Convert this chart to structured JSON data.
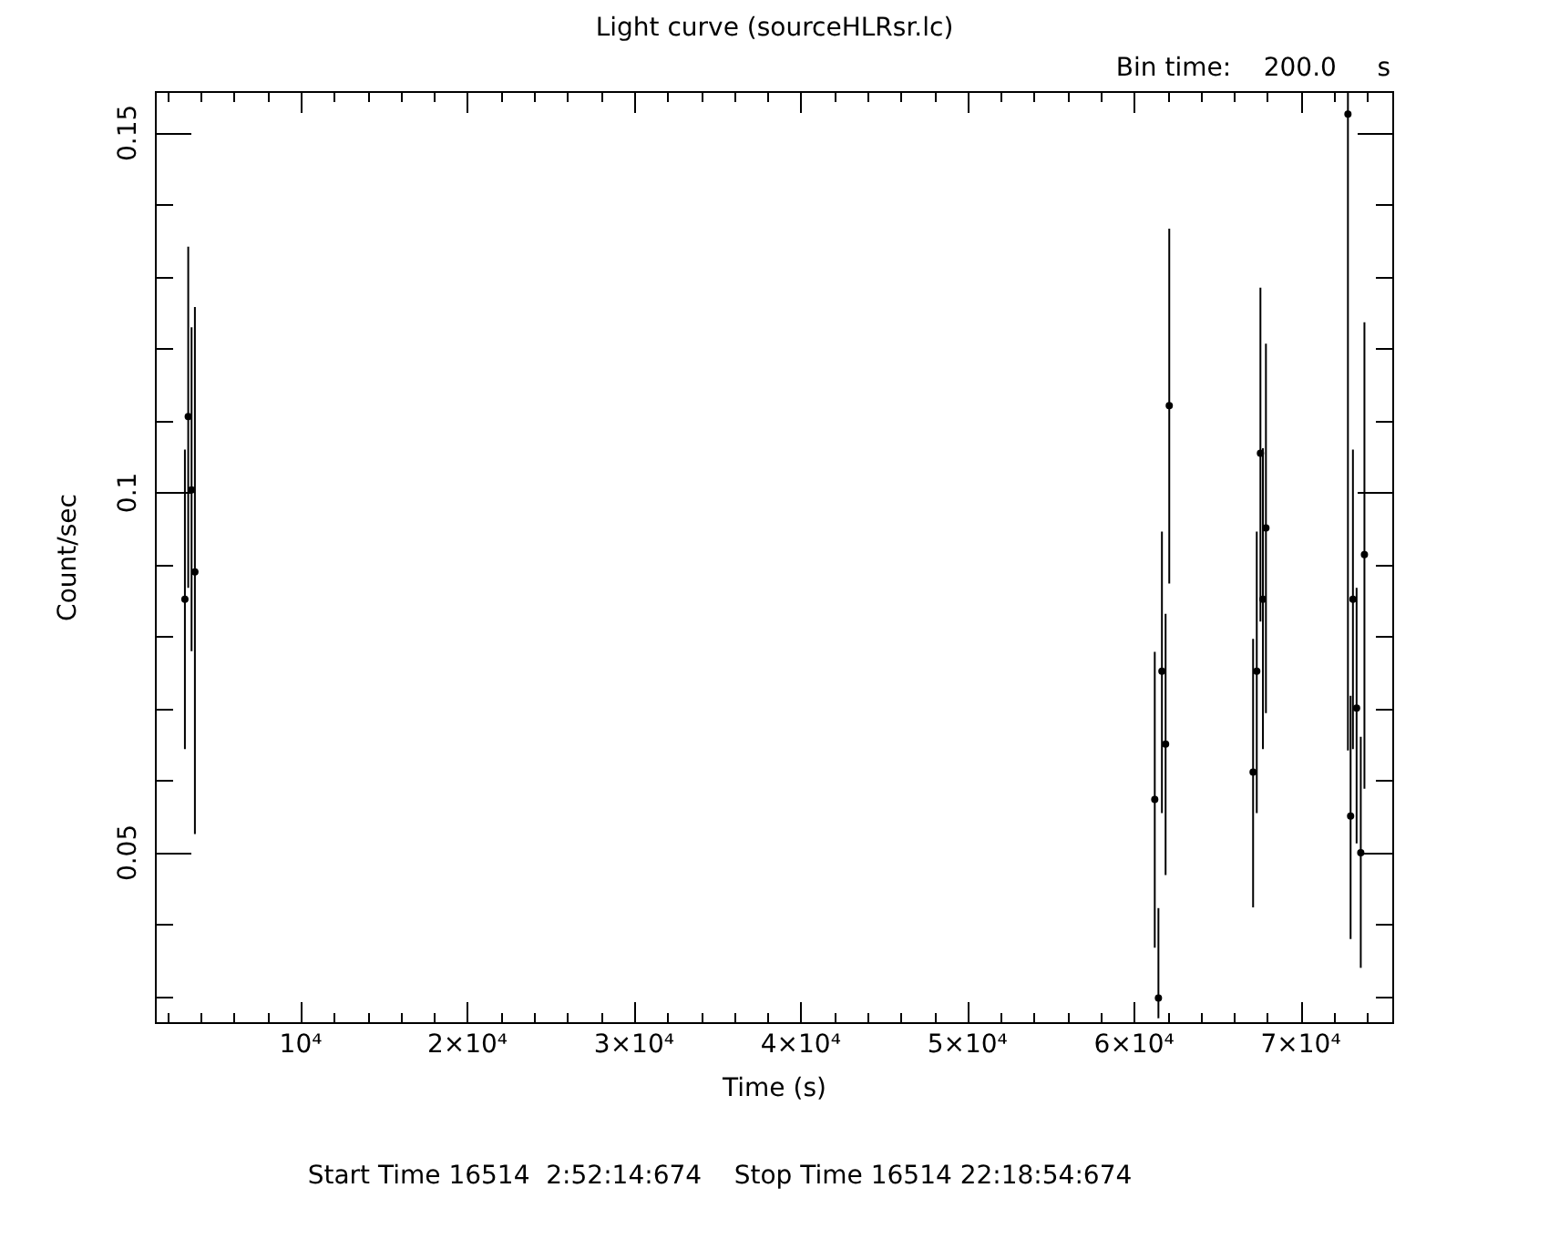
{
  "chart_data": {
    "type": "scatter",
    "title": "Light curve (sourceHLRsr.lc)",
    "subtitle": "Bin time:    200.0     s",
    "xlabel": "Time (s)",
    "ylabel": "Count/sec",
    "annotations": [
      "Start Time 16514  2:52:14:674    Stop Time 16514 22:18:54:674"
    ],
    "marker": "circle",
    "grid": false,
    "legend": false,
    "xlim": [
      1250,
      75600
    ],
    "ylim": [
      0.0262,
      0.1558
    ],
    "xticks": [
      {
        "value": 2000,
        "label": null
      },
      {
        "value": 4000,
        "label": null
      },
      {
        "value": 6000,
        "label": null
      },
      {
        "value": 8000,
        "label": null
      },
      {
        "value": 10000,
        "label": "10⁴"
      },
      {
        "value": 12000,
        "label": null
      },
      {
        "value": 14000,
        "label": null
      },
      {
        "value": 16000,
        "label": null
      },
      {
        "value": 18000,
        "label": null
      },
      {
        "value": 20000,
        "label": "2×10⁴"
      },
      {
        "value": 22000,
        "label": null
      },
      {
        "value": 24000,
        "label": null
      },
      {
        "value": 26000,
        "label": null
      },
      {
        "value": 28000,
        "label": null
      },
      {
        "value": 30000,
        "label": "3×10⁴"
      },
      {
        "value": 32000,
        "label": null
      },
      {
        "value": 34000,
        "label": null
      },
      {
        "value": 36000,
        "label": null
      },
      {
        "value": 38000,
        "label": null
      },
      {
        "value": 40000,
        "label": "4×10⁴"
      },
      {
        "value": 42000,
        "label": null
      },
      {
        "value": 44000,
        "label": null
      },
      {
        "value": 46000,
        "label": null
      },
      {
        "value": 48000,
        "label": null
      },
      {
        "value": 50000,
        "label": "5×10⁴"
      },
      {
        "value": 52000,
        "label": null
      },
      {
        "value": 54000,
        "label": null
      },
      {
        "value": 56000,
        "label": null
      },
      {
        "value": 58000,
        "label": null
      },
      {
        "value": 60000,
        "label": "6×10⁴"
      },
      {
        "value": 62000,
        "label": null
      },
      {
        "value": 64000,
        "label": null
      },
      {
        "value": 66000,
        "label": null
      },
      {
        "value": 68000,
        "label": null
      },
      {
        "value": 70000,
        "label": "7×10⁴"
      },
      {
        "value": 72000,
        "label": null
      },
      {
        "value": 74000,
        "label": null
      }
    ],
    "yticks": [
      {
        "value": 0.03,
        "label": null
      },
      {
        "value": 0.04,
        "label": null
      },
      0.05,
      {
        "value": 0.06,
        "label": null
      },
      {
        "value": 0.07,
        "label": null
      },
      {
        "value": 0.08,
        "label": null
      },
      {
        "value": 0.09,
        "label": null
      },
      0.1,
      {
        "value": 0.11,
        "label": null
      },
      {
        "value": 0.12,
        "label": null
      },
      {
        "value": 0.13,
        "label": null
      },
      {
        "value": 0.14,
        "label": null
      },
      0.15
    ],
    "x": [
      3050,
      3250,
      3450,
      3650,
      61240,
      61460,
      61670,
      61890,
      62110,
      67140,
      67360,
      67580,
      67730,
      67910,
      72830,
      72990,
      73130,
      73350,
      73600,
      73820
    ],
    "series": [
      {
        "color": "#000000",
        "values": [
          0.0852,
          0.1106,
          0.1004,
          0.089,
          0.0574,
          0.0298,
          0.0752,
          0.0651,
          0.1121,
          0.0612,
          0.0752,
          0.1055,
          0.0852,
          0.0951,
          0.1526,
          0.0551,
          0.0852,
          0.0701,
          0.05,
          0.0914
        ],
        "errors": [
          [
            0.0644,
            0.106
          ],
          [
            0.0868,
            0.1342
          ],
          [
            0.078,
            0.123
          ],
          [
            0.0526,
            0.1258
          ],
          [
            0.0368,
            0.0779
          ],
          [
            0.027,
            0.0423
          ],
          [
            0.0555,
            0.0946
          ],
          [
            0.0469,
            0.0832
          ],
          [
            0.0874,
            0.1367
          ],
          [
            0.0424,
            0.0797
          ],
          [
            0.0555,
            0.0946
          ],
          [
            0.0821,
            0.1285
          ],
          [
            0.0644,
            0.1062
          ],
          [
            0.0694,
            0.1207
          ],
          [
            0.0642,
            0.1558
          ],
          [
            0.038,
            0.0718
          ],
          [
            0.0644,
            0.106
          ],
          [
            0.0513,
            0.0868
          ],
          [
            0.034,
            0.0661
          ],
          [
            0.0589,
            0.1237
          ]
        ]
      }
    ]
  }
}
